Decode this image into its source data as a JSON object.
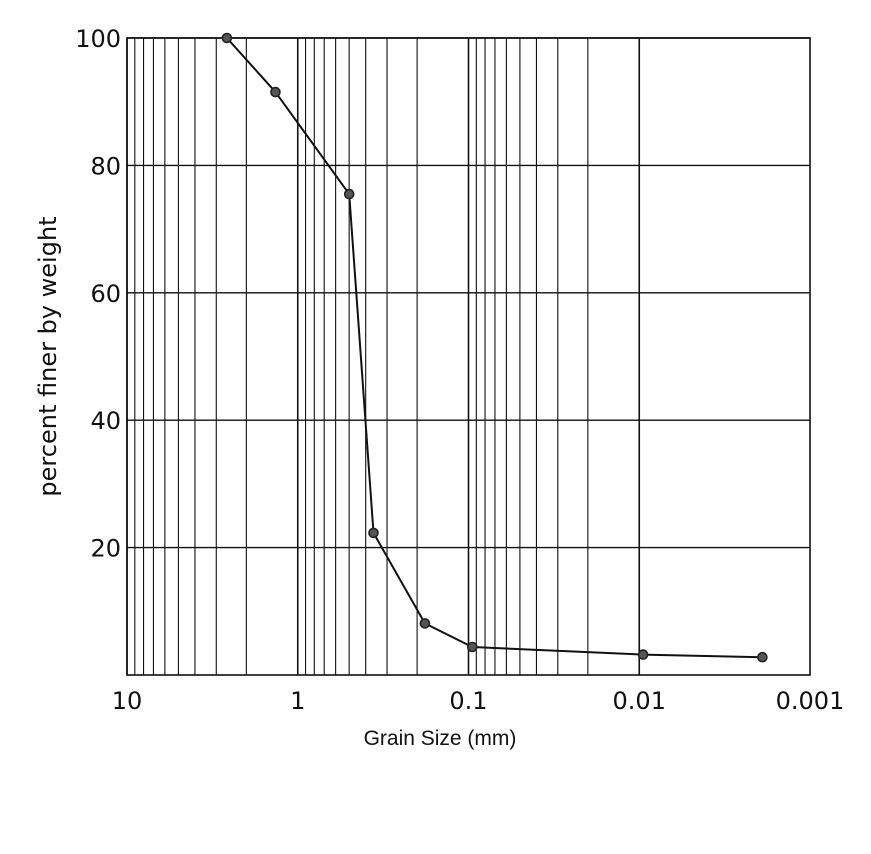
{
  "chart_data": {
    "type": "line",
    "title": "",
    "xlabel": "Grain Size (mm)",
    "ylabel": "percent finer by weight",
    "x_scale": "log",
    "x_reversed": true,
    "xlim": [
      10,
      0.001
    ],
    "ylim": [
      0,
      100
    ],
    "grid": true,
    "legend": "none",
    "x_ticks": [
      10,
      1,
      0.1,
      0.01,
      0.001
    ],
    "x_tick_labels": [
      "10",
      "1",
      "0.1",
      "0.01",
      "0.001"
    ],
    "y_ticks": [
      20,
      40,
      60,
      80,
      100
    ],
    "y_tick_labels": [
      "20",
      "40",
      "60",
      "80",
      "100"
    ],
    "series": [
      {
        "x": [
          2.6,
          1.35,
          0.5,
          0.36,
          0.18,
          0.095,
          0.0095,
          0.0019
        ],
        "y": [
          100,
          91.5,
          75.5,
          22.3,
          8.1,
          4.4,
          3.2,
          2.8
        ]
      }
    ],
    "colors": {
      "line": "#111111",
      "grid": "#111111",
      "marker": "#222222"
    }
  }
}
